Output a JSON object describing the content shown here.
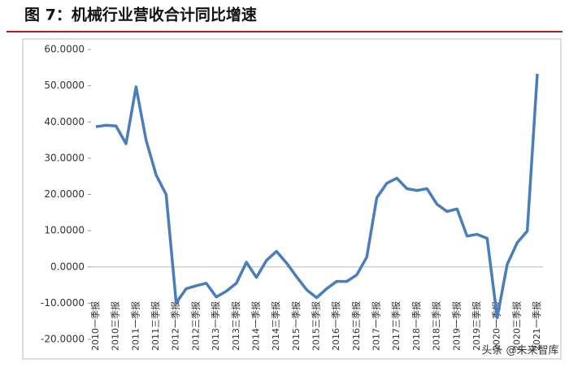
{
  "chart_data": {
    "type": "line",
    "title": "图 7：机械行业营收合计同比增速",
    "categories": [
      "2010一季报",
      null,
      "2010三季报",
      null,
      "2011一季报",
      null,
      "2011三季报",
      null,
      "2012一季报",
      null,
      "2012三季报",
      null,
      "2013一季报",
      null,
      "2013三季报",
      null,
      "2014一季报",
      null,
      "2014三季报",
      null,
      "2015一季报",
      null,
      "2015三季报",
      null,
      "2016一季报",
      null,
      "2016三季报",
      null,
      "2017一季报",
      null,
      "2017三季报",
      null,
      "2018一季报",
      null,
      "2018三季报",
      null,
      "2019一季报",
      null,
      "2019三季报",
      null,
      "2020一季报",
      null,
      "2020三季报",
      null,
      "2021一季报"
    ],
    "series": [
      {
        "name": "机械行业营收合计同比增速",
        "color": "#4a7ebb",
        "values": [
          38.7,
          39.1,
          38.9,
          34,
          49.7,
          35,
          25.4,
          20,
          -9.9,
          -6,
          -5.2,
          -4.5,
          -8.3,
          -6.7,
          -4.5,
          1.3,
          -2.9,
          1.8,
          4.3,
          1.1,
          -2.7,
          -6.3,
          -8.5,
          -6,
          -4,
          -4,
          -2.2,
          2.7,
          19.1,
          23.1,
          24.5,
          21.6,
          21.1,
          21.6,
          17.3,
          15.3,
          16,
          8.5,
          9,
          7.9,
          -14,
          0.7,
          6.7,
          9.9,
          53.3
        ]
      }
    ],
    "ylim": [
      -20,
      60
    ],
    "yticks": [
      {
        "value": -20,
        "label": "-20.0000"
      },
      {
        "value": -10,
        "label": "-10.0000"
      },
      {
        "value": 0,
        "label": "0.0000"
      },
      {
        "value": 10,
        "label": "10.0000"
      },
      {
        "value": 20,
        "label": "20.0000"
      },
      {
        "value": 30,
        "label": "30.0000"
      },
      {
        "value": 40,
        "label": "40.0000"
      },
      {
        "value": 50,
        "label": "50.0000"
      },
      {
        "value": 60,
        "label": "60.0000"
      }
    ],
    "watermark": "头条 @未来智库"
  }
}
